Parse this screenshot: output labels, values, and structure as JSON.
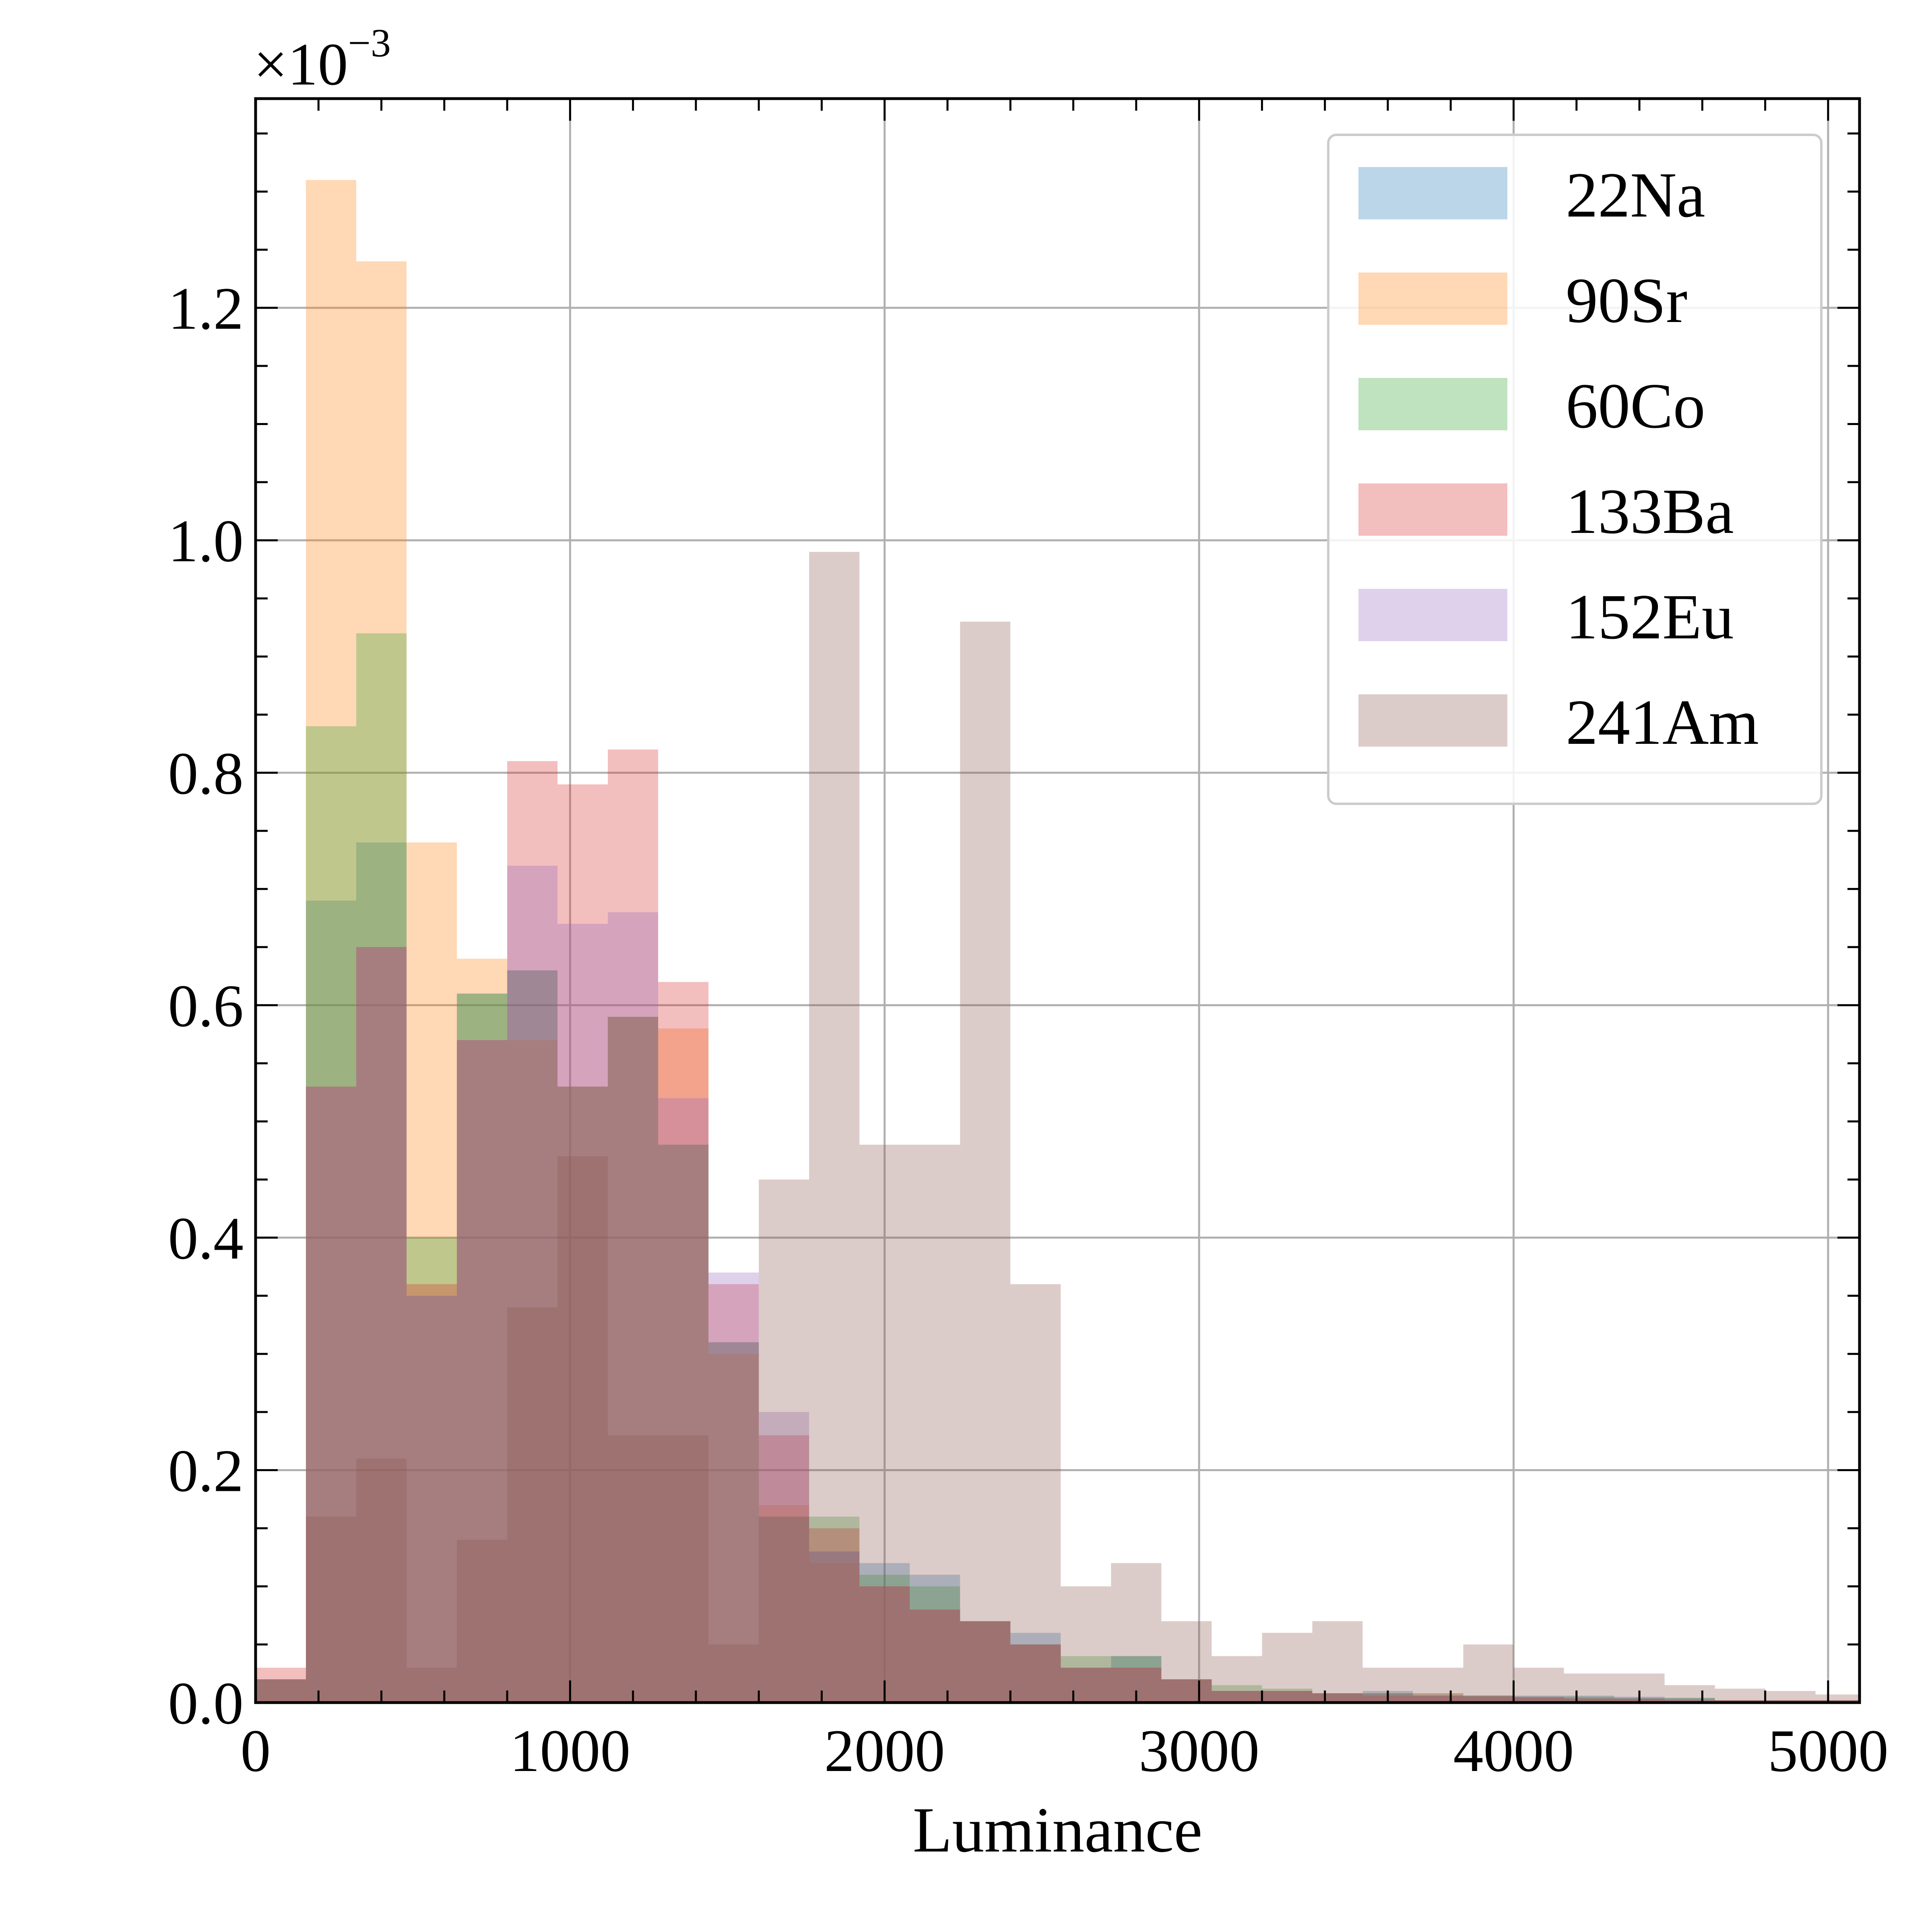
{
  "chart_data": {
    "type": "histogram",
    "xlabel": "Luminance",
    "ylabel": "",
    "y_scale_multiplier": "×10",
    "y_scale_exponent": "−3",
    "xlim": [
      0,
      5100
    ],
    "ylim": [
      0,
      1.38
    ],
    "grid": true,
    "legend_position": "top-right",
    "x_ticks": [
      0,
      1000,
      2000,
      3000,
      4000,
      5000
    ],
    "x_tick_labels": [
      "0",
      "1000",
      "2000",
      "3000",
      "4000",
      "5000"
    ],
    "y_ticks": [
      0,
      0.2,
      0.4,
      0.6,
      0.8,
      1.0,
      1.2
    ],
    "y_tick_labels": [
      "0.0",
      "0.2",
      "0.4",
      "0.6",
      "0.8",
      "1.0",
      "1.2"
    ],
    "bin_edges": [
      0,
      160,
      320,
      480,
      640,
      800,
      960,
      1120,
      1280,
      1440,
      1600,
      1760,
      1920,
      2080,
      2240,
      2400,
      2560,
      2720,
      2880,
      3040,
      3200,
      3360,
      3520,
      3680,
      3840,
      4000,
      4160,
      4320,
      4480,
      4640,
      4800,
      4960,
      5120
    ],
    "series": [
      {
        "name": "22Na",
        "color": "#1f77b4",
        "values": [
          0.02,
          0.69,
          0.74,
          0.35,
          0.61,
          0.63,
          0.53,
          0.59,
          0.48,
          0.31,
          0.16,
          0.13,
          0.12,
          0.11,
          0.07,
          0.06,
          0.03,
          0.04,
          0.02,
          0.01,
          0.01,
          0.008,
          0.01,
          0.008,
          0.006,
          0.006,
          0.006,
          0.005,
          0.004,
          0.002,
          0.002,
          0.002
        ]
      },
      {
        "name": "90Sr",
        "color": "#ff7f0e",
        "values": [
          0.02,
          1.31,
          1.24,
          0.74,
          0.64,
          0.57,
          0.53,
          0.59,
          0.58,
          0.3,
          0.17,
          0.12,
          0.1,
          0.08,
          0.07,
          0.05,
          0.03,
          0.03,
          0.02,
          0.01,
          0.01,
          0.008,
          0.008,
          0.008,
          0.006,
          0.005,
          0.004,
          0.003,
          0.002,
          0.002,
          0.002,
          0.002
        ]
      },
      {
        "name": "60Co",
        "color": "#2ca02c",
        "values": [
          0.02,
          0.84,
          0.92,
          0.4,
          0.61,
          0.63,
          0.53,
          0.59,
          0.48,
          0.31,
          0.16,
          0.16,
          0.11,
          0.1,
          0.07,
          0.05,
          0.04,
          0.04,
          0.02,
          0.015,
          0.012,
          0.008,
          0.008,
          0.006,
          0.006,
          0.005,
          0.005,
          0.004,
          0.004,
          0.002,
          0.002,
          0.002
        ]
      },
      {
        "name": "133Ba",
        "color": "#d62728",
        "values": [
          0.03,
          0.53,
          0.65,
          0.36,
          0.57,
          0.81,
          0.79,
          0.82,
          0.62,
          0.36,
          0.23,
          0.15,
          0.1,
          0.08,
          0.07,
          0.05,
          0.03,
          0.03,
          0.02,
          0.01,
          0.01,
          0.008,
          0.006,
          0.006,
          0.005,
          0.004,
          0.003,
          0.003,
          0.002,
          0.002,
          0.002,
          0.002
        ]
      },
      {
        "name": "152Eu",
        "color": "#9467bd",
        "values": [
          0.02,
          0.53,
          0.65,
          0.35,
          0.57,
          0.72,
          0.67,
          0.68,
          0.52,
          0.37,
          0.25,
          0.13,
          0.1,
          0.08,
          0.07,
          0.05,
          0.03,
          0.03,
          0.02,
          0.01,
          0.01,
          0.008,
          0.008,
          0.006,
          0.006,
          0.005,
          0.004,
          0.004,
          0.003,
          0.002,
          0.002,
          0.002
        ]
      },
      {
        "name": "241Am",
        "color": "#8c564b",
        "values": [
          0.02,
          0.16,
          0.21,
          0.03,
          0.14,
          0.34,
          0.47,
          0.23,
          0.23,
          0.05,
          0.45,
          0.99,
          0.48,
          0.48,
          0.93,
          0.36,
          0.1,
          0.12,
          0.07,
          0.04,
          0.06,
          0.07,
          0.03,
          0.03,
          0.05,
          0.03,
          0.025,
          0.025,
          0.015,
          0.012,
          0.01,
          0.007
        ]
      }
    ]
  }
}
